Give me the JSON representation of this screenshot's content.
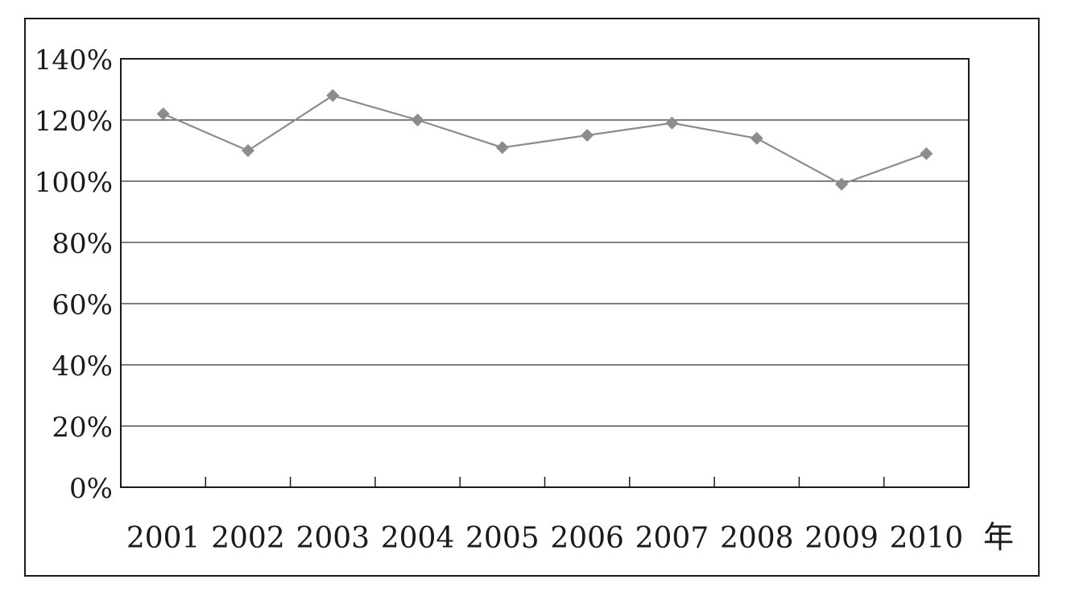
{
  "chart_data": {
    "type": "line",
    "title": "",
    "xlabel": "年",
    "ylabel": "",
    "categories": [
      "2001",
      "2002",
      "2003",
      "2004",
      "2005",
      "2006",
      "2007",
      "2008",
      "2009",
      "2010"
    ],
    "series": [
      {
        "values": [
          122,
          110,
          128,
          120,
          111,
          115,
          119,
          114,
          99,
          109
        ]
      }
    ],
    "ylim": [
      0,
      140
    ],
    "yticks": [
      0,
      20,
      40,
      60,
      80,
      100,
      120,
      140
    ],
    "ytick_labels": [
      "0%",
      "20%",
      "40%",
      "60%",
      "80%",
      "100%",
      "120%",
      "140%"
    ],
    "grid": true,
    "legend": "none",
    "colors": {
      "line": "#8c8c8c",
      "marker": "#8c8c8c",
      "axis": "#1a1a1a",
      "grid": "#333333"
    }
  }
}
